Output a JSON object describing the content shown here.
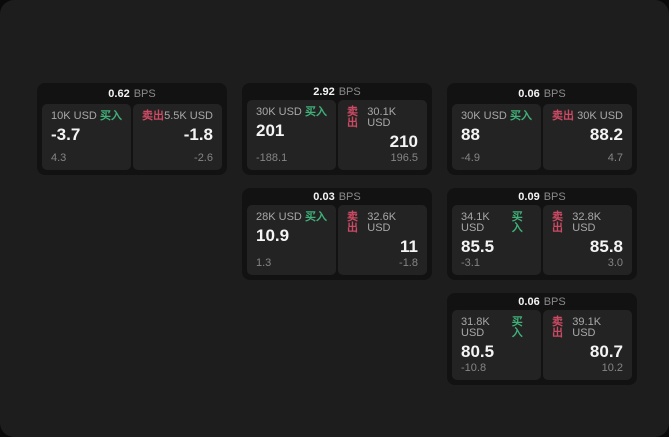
{
  "page": {
    "bps_label": "BPS",
    "buy_label": "买入",
    "sell_label": "卖出"
  },
  "colors": {
    "buy_green": "#40b079",
    "sell_red": "#cc4a63",
    "page_bg": "#1d1d1d",
    "card_bg": "#121212",
    "panel_bg": "#232323"
  },
  "cards": [
    {
      "bps": "0.62",
      "buy_amount": "10K USD",
      "buy_value": "-3.7",
      "buy_sub": "4.3",
      "sell_amount": "5.5K USD",
      "sell_value": "-1.8",
      "sell_sub": "-2.6"
    },
    {
      "bps": "2.92",
      "buy_amount": "30K USD",
      "buy_value": "201",
      "buy_sub": "-188.1",
      "sell_amount": "30.1K USD",
      "sell_value": "210",
      "sell_sub": "196.5"
    },
    {
      "bps": "0.06",
      "buy_amount": "30K USD",
      "buy_value": "88",
      "buy_sub": "-4.9",
      "sell_amount": "30K USD",
      "sell_value": "88.2",
      "sell_sub": "4.7"
    },
    {
      "bps": "0.03",
      "buy_amount": "28K USD",
      "buy_value": "10.9",
      "buy_sub": "1.3",
      "sell_amount": "32.6K USD",
      "sell_value": "11",
      "sell_sub": "-1.8"
    },
    {
      "bps": "0.09",
      "buy_amount": "34.1K USD",
      "buy_value": "85.5",
      "buy_sub": "-3.1",
      "sell_amount": "32.8K USD",
      "sell_value": "85.8",
      "sell_sub": "3.0"
    },
    {
      "bps": "0.06",
      "buy_amount": "31.8K USD",
      "buy_value": "80.5",
      "buy_sub": "-10.8",
      "sell_amount": "39.1K USD",
      "sell_value": "80.7",
      "sell_sub": "10.2"
    }
  ]
}
